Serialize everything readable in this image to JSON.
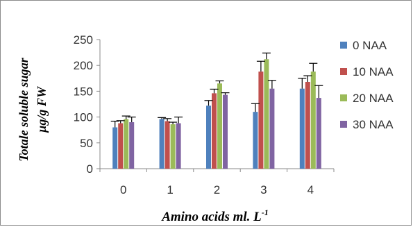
{
  "chart_data": {
    "type": "bar",
    "categories": [
      "0",
      "1",
      "2",
      "3",
      "4"
    ],
    "series": [
      {
        "name": "0 NAA",
        "color": "#4F81BD",
        "values": [
          80,
          96,
          122,
          110,
          155
        ],
        "errors": [
          12,
          3,
          10,
          16,
          20
        ]
      },
      {
        "name": "10 NAA",
        "color": "#C0504D",
        "values": [
          88,
          92,
          146,
          188,
          168
        ],
        "errors": [
          5,
          5,
          8,
          20,
          12
        ]
      },
      {
        "name": "20 NAA",
        "color": "#9BBB59",
        "values": [
          96,
          86,
          165,
          212,
          188
        ],
        "errors": [
          6,
          4,
          5,
          12,
          16
        ]
      },
      {
        "name": "30 NAA",
        "color": "#8064A2",
        "values": [
          90,
          88,
          143,
          155,
          137
        ],
        "errors": [
          10,
          12,
          4,
          16,
          24
        ]
      }
    ],
    "yticks": [
      0,
      50,
      100,
      150,
      200,
      250
    ],
    "ylim": [
      0,
      250
    ],
    "xlabel": "Amino acids ml. L",
    "xlabel_sup": "-1",
    "ylabel_line1": "Totale soluble sugar",
    "ylabel_line2": "µg/g FW",
    "legend_position": "right",
    "grid": false
  }
}
